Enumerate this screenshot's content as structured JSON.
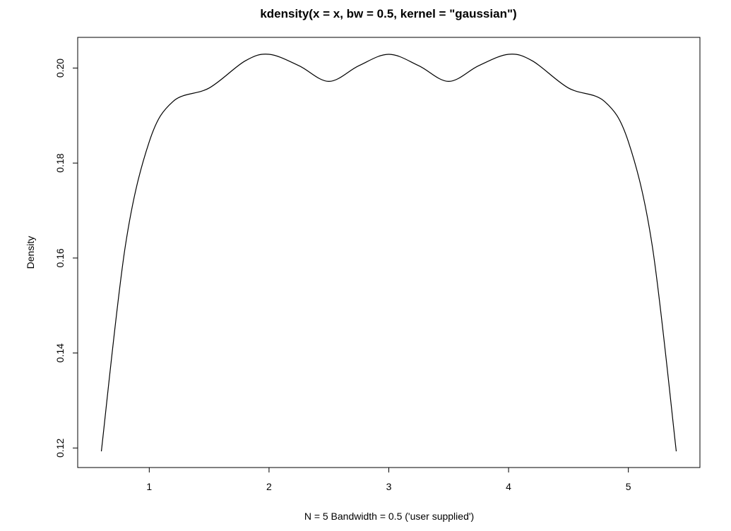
{
  "chart_data": {
    "type": "line",
    "title": "kdensity(x = x, bw = 0.5, kernel = \"gaussian\")",
    "xlabel": "N = 5   Bandwidth = 0.5 ('user supplied')",
    "ylabel": "Density",
    "x_ticks": [
      1,
      2,
      3,
      4,
      5
    ],
    "x_tick_labels": [
      "1",
      "2",
      "3",
      "4",
      "5"
    ],
    "y_ticks": [
      0.12,
      0.14,
      0.16,
      0.18,
      0.2
    ],
    "y_tick_labels": [
      "0.12",
      "0.14",
      "0.16",
      "0.18",
      "0.20"
    ],
    "xlim": [
      0.6,
      5.4
    ],
    "ylim": [
      0.1193,
      0.2029
    ],
    "grid": false,
    "legend": "none",
    "line_color": "#000000",
    "series": [
      {
        "x": [
          0.6,
          0.8,
          1.0,
          1.2,
          1.5,
          1.8,
          2.0,
          2.25,
          2.5,
          2.75,
          3.0,
          3.25,
          3.5,
          3.75,
          4.0,
          4.2,
          4.5,
          4.8,
          5.0,
          5.2,
          5.4
        ],
        "values": [
          0.1193,
          0.1625,
          0.1845,
          0.193,
          0.1958,
          0.2015,
          0.2029,
          0.2005,
          0.1972,
          0.2005,
          0.2029,
          0.2005,
          0.1972,
          0.2005,
          0.2029,
          0.2015,
          0.1958,
          0.193,
          0.1845,
          0.1625,
          0.1193
        ]
      }
    ]
  }
}
